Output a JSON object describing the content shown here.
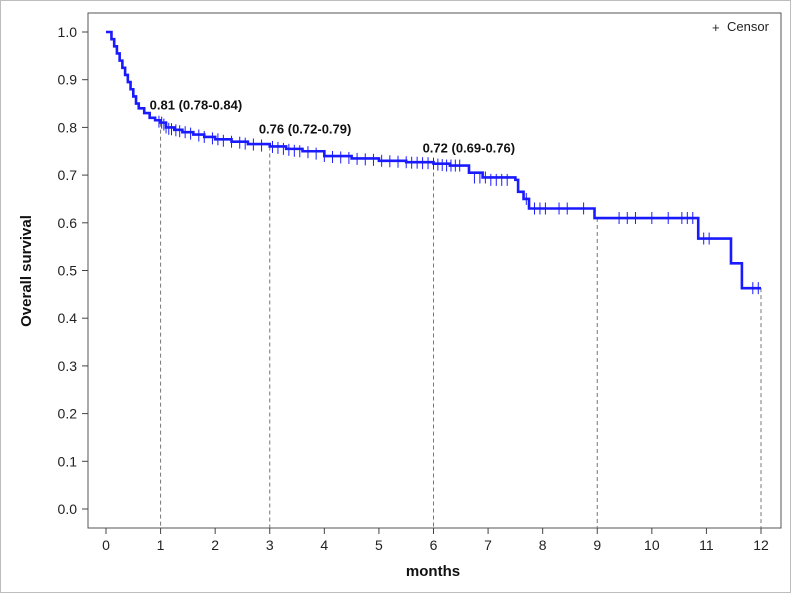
{
  "chart_data": {
    "type": "line",
    "xlabel": "months",
    "ylabel": "Overall survival",
    "xlim": [
      0,
      12
    ],
    "ylim": [
      0,
      1.0
    ],
    "x_ticks": [
      "0",
      "1",
      "2",
      "3",
      "4",
      "5",
      "6",
      "7",
      "8",
      "9",
      "10",
      "11",
      "12"
    ],
    "y_ticks": [
      "0.0",
      "0.1",
      "0.2",
      "0.3",
      "0.4",
      "0.5",
      "0.6",
      "0.7",
      "0.8",
      "0.9",
      "1.0"
    ],
    "grid": false,
    "legend": {
      "position": "top-right",
      "entries": [
        {
          "symbol": "+",
          "label": "Censor"
        }
      ]
    },
    "series": [
      {
        "color": "#1a1aff",
        "x": [
          0.05,
          0.1,
          0.15,
          0.2,
          0.25,
          0.3,
          0.35,
          0.4,
          0.45,
          0.5,
          0.55,
          0.6,
          0.7,
          0.8,
          0.9,
          1.0,
          1.1,
          1.25,
          1.4,
          1.6,
          1.8,
          2.0,
          2.3,
          2.6,
          3.0,
          3.3,
          3.6,
          4.0,
          4.5,
          5.0,
          5.5,
          6.0,
          6.3,
          6.55,
          6.65,
          6.9,
          7.5,
          7.55,
          7.65,
          7.75,
          8.5,
          8.95,
          10.0,
          10.8,
          10.85,
          11.4,
          11.45,
          11.6,
          11.65,
          12.0
        ],
        "y": [
          1.0,
          0.985,
          0.97,
          0.955,
          0.94,
          0.925,
          0.91,
          0.895,
          0.88,
          0.865,
          0.85,
          0.84,
          0.83,
          0.82,
          0.815,
          0.81,
          0.8,
          0.795,
          0.79,
          0.785,
          0.78,
          0.775,
          0.77,
          0.765,
          0.76,
          0.755,
          0.75,
          0.74,
          0.735,
          0.73,
          0.727,
          0.724,
          0.72,
          0.72,
          0.705,
          0.695,
          0.69,
          0.665,
          0.65,
          0.63,
          0.63,
          0.61,
          0.61,
          0.61,
          0.567,
          0.567,
          0.515,
          0.515,
          0.463,
          0.463
        ]
      }
    ],
    "censor_marks": [
      {
        "x": 0.97,
        "y": 0.812
      },
      {
        "x": 1.02,
        "y": 0.81
      },
      {
        "x": 1.06,
        "y": 0.806
      },
      {
        "x": 1.1,
        "y": 0.8
      },
      {
        "x": 1.15,
        "y": 0.797
      },
      {
        "x": 1.2,
        "y": 0.796
      },
      {
        "x": 1.28,
        "y": 0.794
      },
      {
        "x": 1.35,
        "y": 0.792
      },
      {
        "x": 1.45,
        "y": 0.79
      },
      {
        "x": 1.55,
        "y": 0.787
      },
      {
        "x": 1.7,
        "y": 0.783
      },
      {
        "x": 1.8,
        "y": 0.78
      },
      {
        "x": 1.95,
        "y": 0.777
      },
      {
        "x": 2.05,
        "y": 0.775
      },
      {
        "x": 2.15,
        "y": 0.772
      },
      {
        "x": 2.3,
        "y": 0.77
      },
      {
        "x": 2.45,
        "y": 0.768
      },
      {
        "x": 2.55,
        "y": 0.766
      },
      {
        "x": 2.7,
        "y": 0.764
      },
      {
        "x": 2.85,
        "y": 0.762
      },
      {
        "x": 3.05,
        "y": 0.759
      },
      {
        "x": 3.15,
        "y": 0.757
      },
      {
        "x": 3.25,
        "y": 0.755
      },
      {
        "x": 3.35,
        "y": 0.753
      },
      {
        "x": 3.45,
        "y": 0.751
      },
      {
        "x": 3.55,
        "y": 0.75
      },
      {
        "x": 3.7,
        "y": 0.748
      },
      {
        "x": 3.85,
        "y": 0.745
      },
      {
        "x": 4.0,
        "y": 0.74
      },
      {
        "x": 4.15,
        "y": 0.738
      },
      {
        "x": 4.3,
        "y": 0.737
      },
      {
        "x": 4.45,
        "y": 0.736
      },
      {
        "x": 4.6,
        "y": 0.734
      },
      {
        "x": 4.75,
        "y": 0.733
      },
      {
        "x": 4.9,
        "y": 0.732
      },
      {
        "x": 5.05,
        "y": 0.73
      },
      {
        "x": 5.2,
        "y": 0.729
      },
      {
        "x": 5.35,
        "y": 0.728
      },
      {
        "x": 5.5,
        "y": 0.727
      },
      {
        "x": 5.6,
        "y": 0.726
      },
      {
        "x": 5.7,
        "y": 0.726
      },
      {
        "x": 5.8,
        "y": 0.725
      },
      {
        "x": 5.9,
        "y": 0.725
      },
      {
        "x": 6.0,
        "y": 0.724
      },
      {
        "x": 6.08,
        "y": 0.722
      },
      {
        "x": 6.16,
        "y": 0.721
      },
      {
        "x": 6.24,
        "y": 0.72
      },
      {
        "x": 6.32,
        "y": 0.72
      },
      {
        "x": 6.4,
        "y": 0.72
      },
      {
        "x": 6.48,
        "y": 0.72
      },
      {
        "x": 6.75,
        "y": 0.695
      },
      {
        "x": 6.85,
        "y": 0.695
      },
      {
        "x": 6.95,
        "y": 0.695
      },
      {
        "x": 7.05,
        "y": 0.69
      },
      {
        "x": 7.15,
        "y": 0.69
      },
      {
        "x": 7.25,
        "y": 0.69
      },
      {
        "x": 7.35,
        "y": 0.69
      },
      {
        "x": 7.7,
        "y": 0.65
      },
      {
        "x": 7.85,
        "y": 0.63
      },
      {
        "x": 7.95,
        "y": 0.63
      },
      {
        "x": 8.05,
        "y": 0.63
      },
      {
        "x": 8.3,
        "y": 0.63
      },
      {
        "x": 8.45,
        "y": 0.63
      },
      {
        "x": 8.75,
        "y": 0.63
      },
      {
        "x": 9.4,
        "y": 0.61
      },
      {
        "x": 9.55,
        "y": 0.61
      },
      {
        "x": 9.7,
        "y": 0.61
      },
      {
        "x": 10.0,
        "y": 0.61
      },
      {
        "x": 10.3,
        "y": 0.61
      },
      {
        "x": 10.55,
        "y": 0.61
      },
      {
        "x": 10.65,
        "y": 0.61
      },
      {
        "x": 10.75,
        "y": 0.61
      },
      {
        "x": 10.95,
        "y": 0.567
      },
      {
        "x": 11.05,
        "y": 0.567
      },
      {
        "x": 11.85,
        "y": 0.463
      },
      {
        "x": 11.95,
        "y": 0.463
      }
    ],
    "reference_lines": [
      {
        "x": 1,
        "y": 0.81
      },
      {
        "x": 3,
        "y": 0.76
      },
      {
        "x": 6,
        "y": 0.72
      },
      {
        "x": 9,
        "y": 0.61
      },
      {
        "x": 12,
        "y": 0.463
      }
    ],
    "annotations": [
      {
        "text": "0.81 (0.78-0.84)",
        "x": 0.8,
        "y": 0.85
      },
      {
        "text": "0.76 (0.72-0.79)",
        "x": 2.8,
        "y": 0.8
      },
      {
        "text": "0.72 (0.69-0.76)",
        "x": 5.8,
        "y": 0.76
      }
    ]
  }
}
